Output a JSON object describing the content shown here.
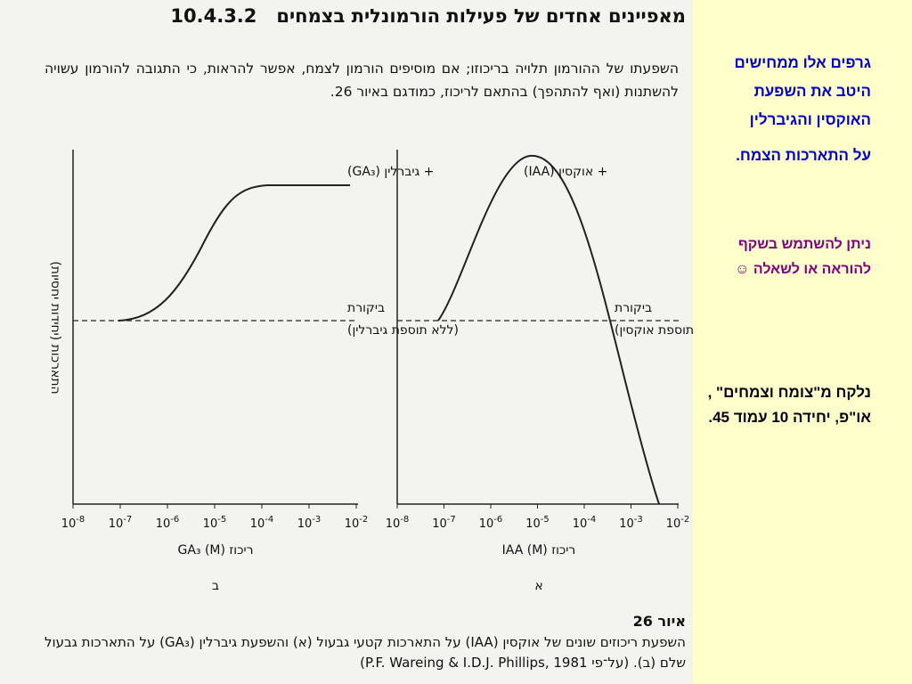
{
  "page": {
    "section_number": "10.4.3.2",
    "section_title": "מאפיינים אחדים של פעילות הורמונלית בצמחים",
    "paragraph": "השפעתו של ההורמון תלויה בריכוזו; אם מוסיפים הורמון לצמח, אפשר להראות, כי התגובה להורמון עשויה להשתנות (ואף להתהפך) בהתאם לריכוז, כמודגם באיור 26."
  },
  "figure": {
    "y_label": "התארכות (יחידות יחסיות)",
    "tick_base": "10",
    "tick_exponents": [
      "-8",
      "-7",
      "-6",
      "-5",
      "-4",
      "-3",
      "-2"
    ],
    "left": {
      "curve_label": "+ גיברלין (GA₃)",
      "control_label": "ביקורת",
      "control_note": "(ללא תוספת גיברלין)",
      "x_label": "ריכוז GA₃ (M)",
      "panel": "ב"
    },
    "right": {
      "curve_label": "+ אוקסין (IAA)",
      "control_label": "ביקורת",
      "control_note": "(ללא תוספת אוקסין)",
      "x_label": "ריכוז IAA (M)",
      "panel": "א"
    }
  },
  "caption": {
    "figure_number": "איור 26",
    "text": "השפעת ריכוזים שונים של אוקסין (IAA) על התארכות קטעי גבעול (א) והשפעת גיברלין (GA₃) על התארכות גבעול שלם (ב). (על־פי P.F. Wareing & I.D.J. Phillips, 1981)"
  },
  "side": {
    "note1": "גרפים אלו ממחישים היטב את השפעת האוקסין והגיברלין",
    "note2": "על התארכות הצמח.",
    "note3": "ניתן להשתמש בשקף להוראה או לשאלה ☺",
    "source": "נלקח מ\"צומח וצמחים\" , או\"פ, יחידה 10 עמוד 45."
  }
}
